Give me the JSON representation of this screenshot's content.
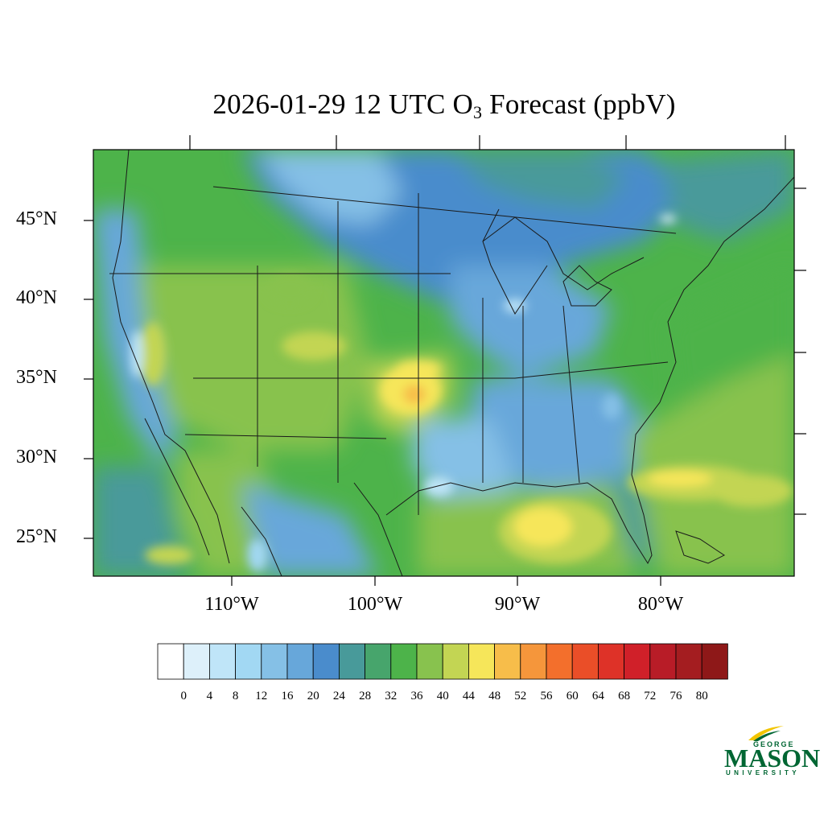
{
  "title": {
    "prefix": "2026-01-29 12 UTC O",
    "subscript": "3",
    "suffix": " Forecast (ppbV)"
  },
  "map": {
    "lat_labels": [
      "45°N",
      "40°N",
      "35°N",
      "30°N",
      "25°N"
    ],
    "lon_labels": [
      "110°W",
      "100°W",
      "90°W",
      "80°W"
    ]
  },
  "colorbar": {
    "tick_labels": [
      "0",
      "4",
      "8",
      "12",
      "16",
      "20",
      "24",
      "28",
      "32",
      "36",
      "40",
      "44",
      "48",
      "52",
      "56",
      "60",
      "64",
      "68",
      "72",
      "76",
      "80"
    ],
    "colors": [
      "#ffffff",
      "#ddf0fa",
      "#bfe5f8",
      "#a2d8f3",
      "#85c0e6",
      "#67a7da",
      "#4a8ccc",
      "#489a9a",
      "#47a56c",
      "#4db34a",
      "#88c24e",
      "#c3d553",
      "#f6e65a",
      "#f7bd4a",
      "#f5963b",
      "#f36f2c",
      "#ea4e28",
      "#de3228",
      "#d02029",
      "#b81c27",
      "#a41d20",
      "#8e1818"
    ]
  },
  "logo": {
    "line1": "GEORGE",
    "line2": "MASON",
    "line3": "UNIVERSITY",
    "color": "#006633",
    "accent": "#f2c500"
  }
}
